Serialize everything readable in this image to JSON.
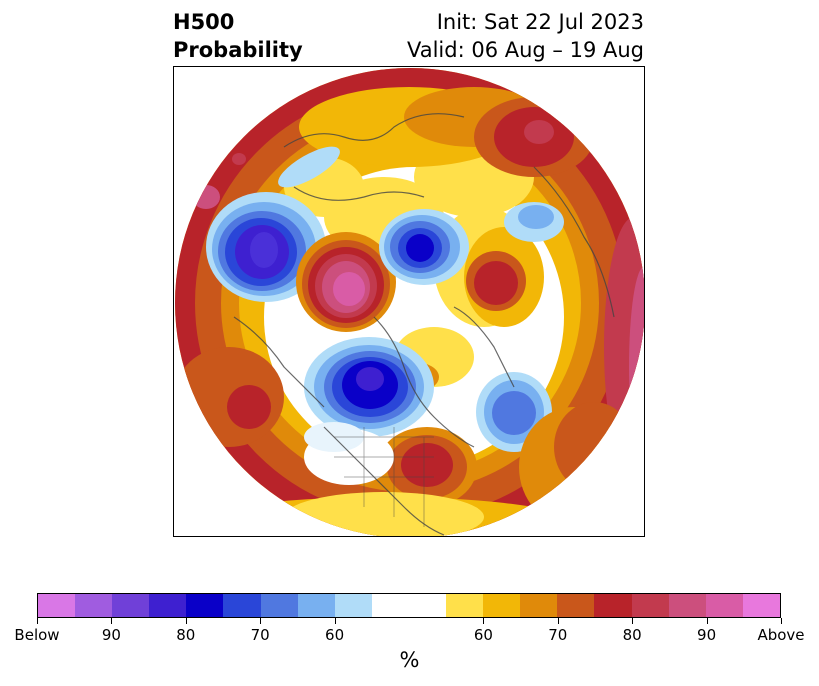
{
  "header": {
    "title_line1": "H500",
    "title_line2": "Probability",
    "init": "Init: Sat 22 Jul 2023",
    "valid": "Valid: 06 Aug – 19 Aug"
  },
  "colorbar": {
    "colors": [
      "#d977e6",
      "#a05ce0",
      "#7040d8",
      "#3e20d0",
      "#0a00c8",
      "#2a46d8",
      "#5078e0",
      "#78b0f0",
      "#b0dcf8",
      "#ffffff",
      "#ffe04a",
      "#f2b707",
      "#e08a0a",
      "#c9571b",
      "#b8232a",
      "#c23a4e",
      "#cc4f7d",
      "#d95ca6",
      "#e878dd"
    ],
    "tick_labels": [
      "Below",
      "90",
      "80",
      "70",
      "60",
      "60",
      "70",
      "80",
      "90",
      "Above"
    ],
    "unit_label": "%"
  },
  "map": {
    "projection": "north-polar-stereographic",
    "anomaly_centers": [
      {
        "region": "North Pacific / Aleutians",
        "sign": "below",
        "max_pct": 90
      },
      {
        "region": "Bering Sea / East Siberia",
        "sign": "above",
        "max_pct": "Above"
      },
      {
        "region": "Arctic Ocean / Kara Sea",
        "sign": "below",
        "max_pct": 90
      },
      {
        "region": "Western Europe / Mediterranean",
        "sign": "above",
        "max_pct": 80
      },
      {
        "region": "Hudson Bay / Canada",
        "sign": "below",
        "max_pct": 90
      },
      {
        "region": "North Atlantic",
        "sign": "below",
        "max_pct": 70
      },
      {
        "region": "Eastern United States",
        "sign": "above",
        "max_pct": 80
      },
      {
        "region": "Central Asia",
        "sign": "above",
        "max_pct": 80
      }
    ]
  }
}
